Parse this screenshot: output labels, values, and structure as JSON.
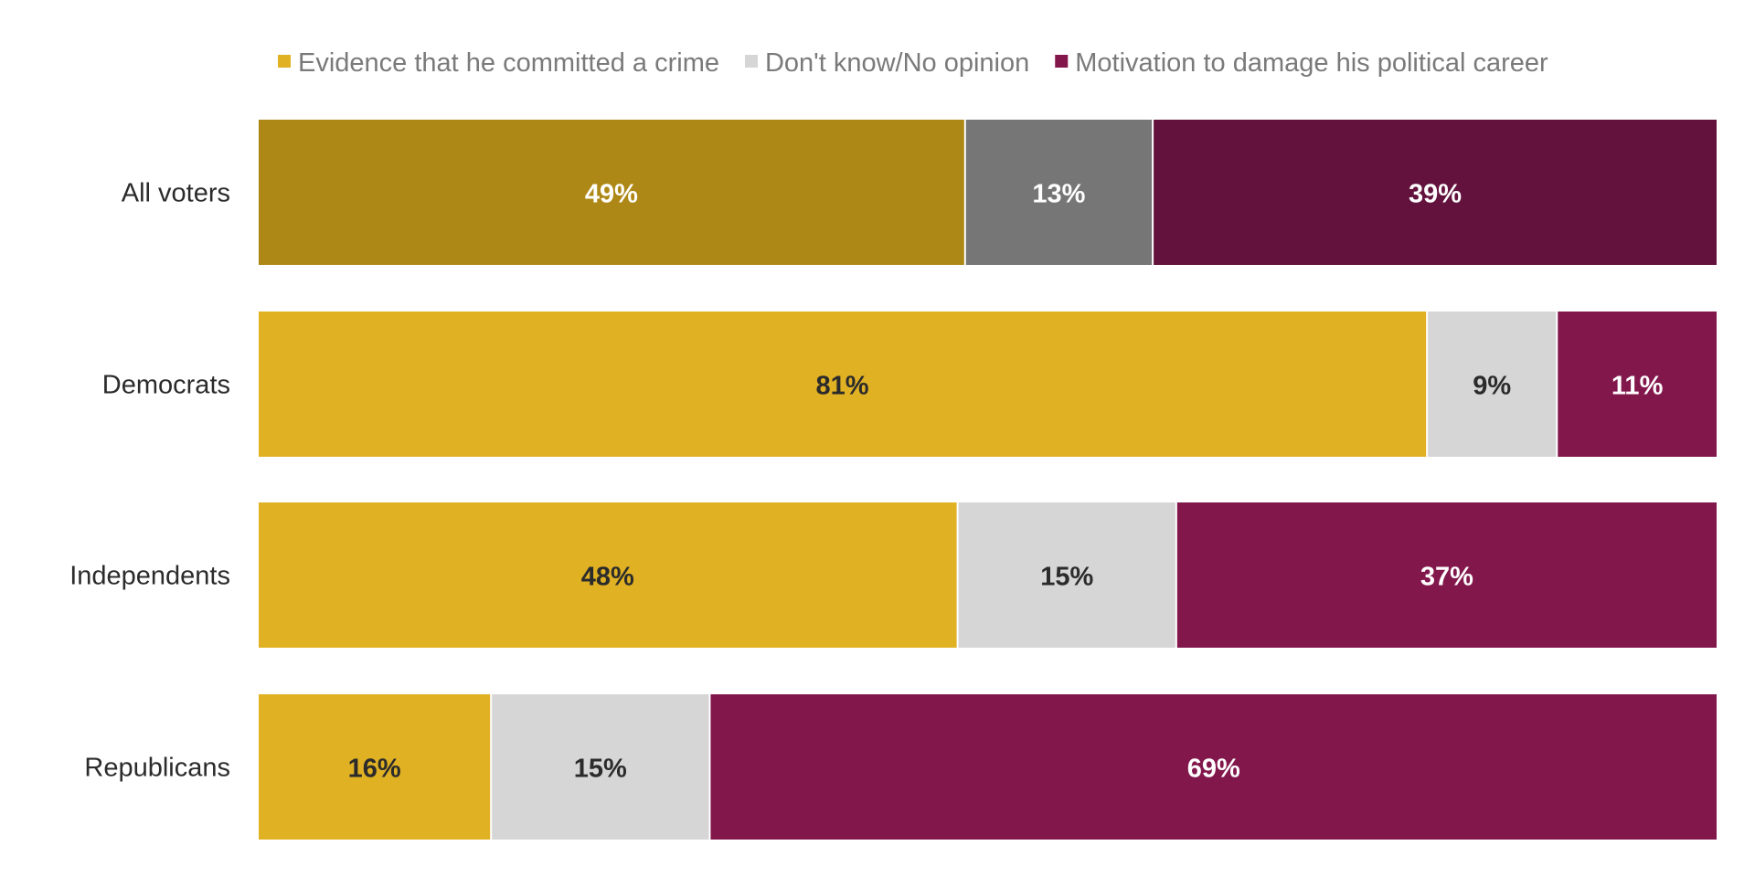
{
  "chart_data": {
    "type": "bar",
    "orientation": "horizontal",
    "stacked": true,
    "normalized": true,
    "legend_position": "top",
    "grid": false,
    "categories": [
      "All voters",
      "Democrats",
      "Independents",
      "Republicans"
    ],
    "series": [
      {
        "name": "Evidence that he committed a crime",
        "values": [
          49,
          81,
          48,
          16
        ],
        "labels": [
          "49%",
          "81%",
          "48%",
          "16%"
        ],
        "colors": [
          "#ae8816",
          "#e1b124",
          "#e1b124",
          "#e1b124"
        ],
        "label_colors": [
          "#ffffff",
          "#2b2b2b",
          "#2b2b2b",
          "#2b2b2b"
        ],
        "legend_color": "#e1b124"
      },
      {
        "name": "Don't know/No opinion",
        "values": [
          13,
          9,
          15,
          15
        ],
        "labels": [
          "13%",
          "9%",
          "15%",
          "15%"
        ],
        "colors": [
          "#767676",
          "#d6d6d6",
          "#d6d6d6",
          "#d6d6d6"
        ],
        "label_colors": [
          "#ffffff",
          "#2b2b2b",
          "#2b2b2b",
          "#2b2b2b"
        ],
        "legend_color": "#d6d6d6"
      },
      {
        "name": "Motivation to damage his political career",
        "values": [
          39,
          11,
          37,
          69
        ],
        "labels": [
          "39%",
          "11%",
          "37%",
          "69%"
        ],
        "colors": [
          "#62123c",
          "#82174c",
          "#82174c",
          "#82174c"
        ],
        "label_colors": [
          "#ffffff",
          "#ffffff",
          "#ffffff",
          "#ffffff"
        ],
        "legend_color": "#82174c"
      }
    ]
  }
}
